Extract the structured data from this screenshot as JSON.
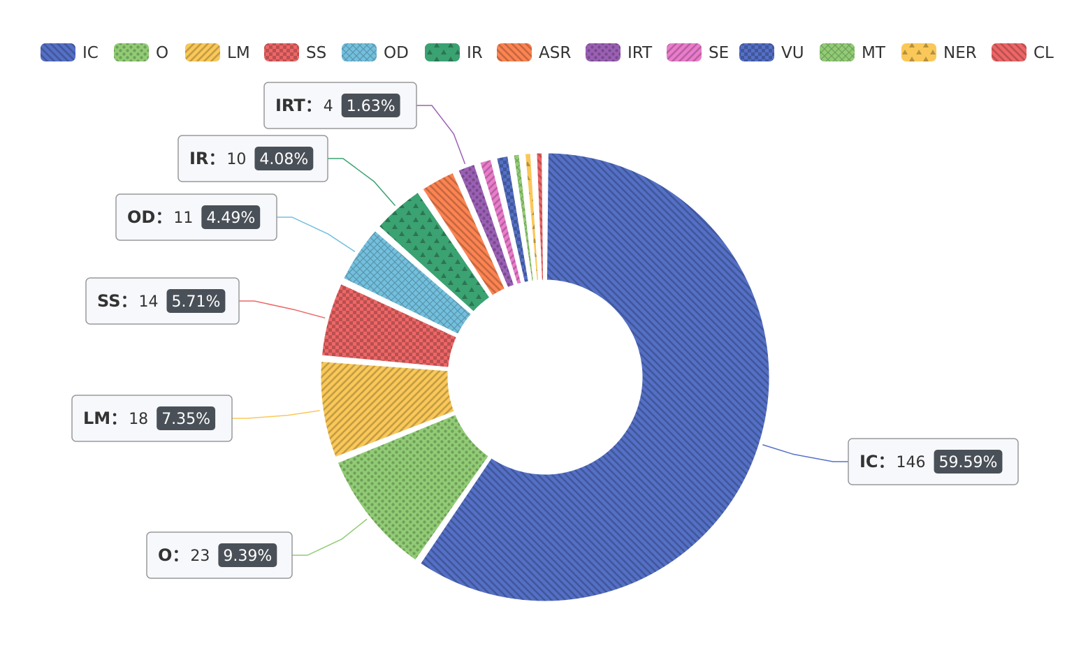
{
  "chart_data": {
    "type": "pie",
    "variant": "donut",
    "legend_position": "top",
    "labels": [
      "IC",
      "O",
      "LM",
      "SS",
      "OD",
      "IR",
      "ASR",
      "IRT",
      "SE",
      "VU",
      "MT",
      "NER",
      "CL"
    ],
    "values": [
      146,
      23,
      18,
      14,
      11,
      10,
      7,
      4,
      3,
      3,
      2,
      2,
      2
    ],
    "percents": [
      "59.59%",
      "9.39%",
      "7.35%",
      "5.71%",
      "4.49%",
      "4.08%",
      "",
      "1.63%",
      "",
      "",
      "",
      "",
      ""
    ],
    "colors": [
      "#5470c6",
      "#91cc75",
      "#fac858",
      "#ee6666",
      "#73c0de",
      "#3ba272",
      "#fc8452",
      "#9a60b4",
      "#ea7ccc",
      "#5470c6",
      "#91cc75",
      "#fac858",
      "#ee6666"
    ],
    "patterns": [
      "diag-back",
      "dots",
      "diag-fwd",
      "checker",
      "crosshatch",
      "triangles",
      "diag-back",
      "dots",
      "diag-fwd",
      "checker",
      "crosshatch",
      "triangles",
      "diag-back"
    ],
    "labeled": [
      "IC",
      "O",
      "LM",
      "SS",
      "OD",
      "IR",
      "IRT"
    ]
  }
}
